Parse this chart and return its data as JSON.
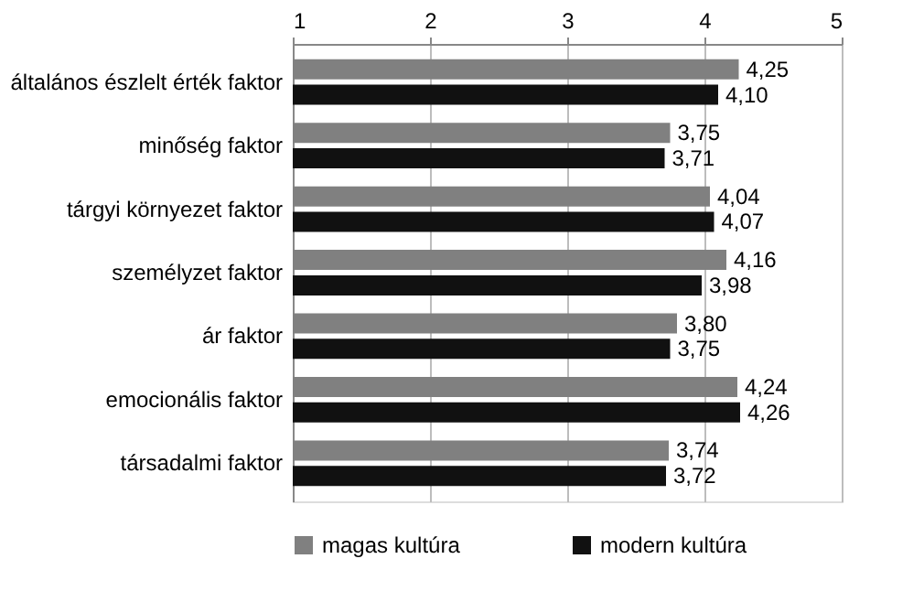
{
  "chart_data": {
    "type": "bar",
    "orientation": "horizontal",
    "categories": [
      "általános észlelt érték faktor",
      "minőség faktor",
      "tárgyi környezet faktor",
      "személyzet faktor",
      "ár faktor",
      "emocionális faktor",
      "társadalmi faktor"
    ],
    "series": [
      {
        "name": "magas kultúra",
        "color": "#808080",
        "values": [
          4.25,
          3.75,
          4.04,
          4.16,
          3.8,
          4.24,
          3.74
        ],
        "value_labels": [
          "4,25",
          "3,75",
          "4,04",
          "4,16",
          "3,80",
          "4,24",
          "3,74"
        ]
      },
      {
        "name": "modern kultúra",
        "color": "#111111",
        "values": [
          4.1,
          3.71,
          4.07,
          3.98,
          3.75,
          4.26,
          3.72
        ],
        "value_labels": [
          "4,10",
          "3,71",
          "4,07",
          "3,98",
          "3,75",
          "4,26",
          "3,72"
        ]
      }
    ],
    "xlim": [
      1,
      5
    ],
    "xticks": [
      1,
      2,
      3,
      4,
      5
    ],
    "grid": "x",
    "legend": "bottom"
  }
}
